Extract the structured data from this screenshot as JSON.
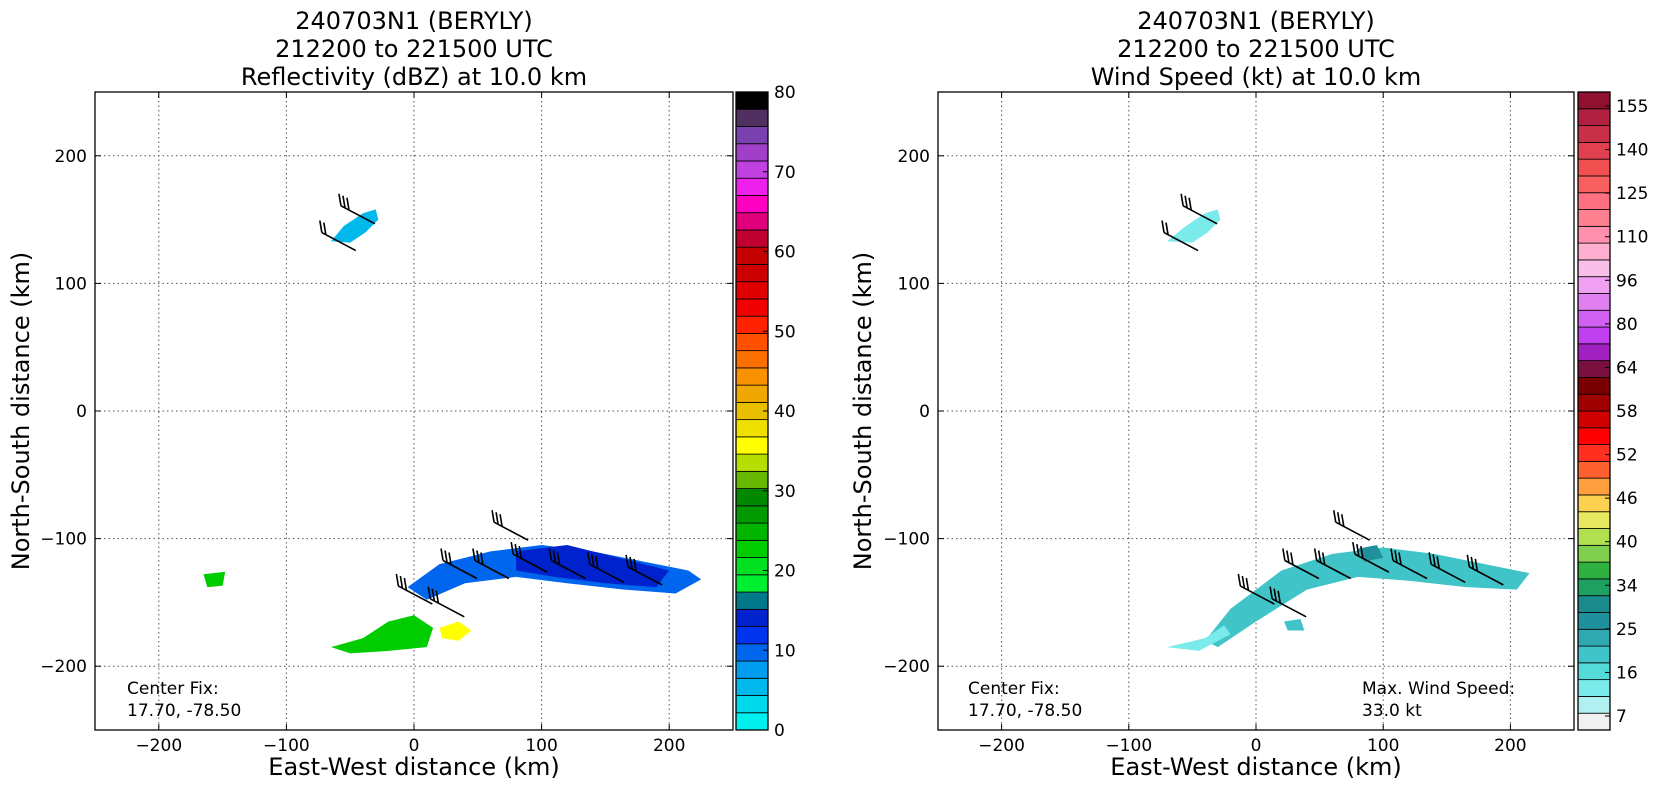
{
  "panels": [
    {
      "id": "reflectivity",
      "title_lines": [
        "240703N1 (BERYLY)",
        "212200 to 221500 UTC",
        "Reflectivity (dBZ) at 10.0 km"
      ],
      "xlabel": "East-West distance (km)",
      "ylabel": "North-South distance (km)",
      "xticks": [
        -200,
        -100,
        0,
        100,
        200
      ],
      "yticks": [
        200,
        100,
        0,
        -100,
        -200
      ],
      "center_fix_label": "Center Fix:",
      "center_fix_value": "17.70, -78.50",
      "colorbar": {
        "tick_labels": [
          "80",
          "70",
          "60",
          "50",
          "40",
          "30",
          "20",
          "10",
          "0"
        ],
        "colors": [
          "#00f0f0",
          "#00d8ec",
          "#00b8ec",
          "#009cf0",
          "#0066ee",
          "#0033ee",
          "#0022cc",
          "#007a8a",
          "#00ee30",
          "#00e020",
          "#00cc00",
          "#00b400",
          "#009a00",
          "#008800",
          "#66b800",
          "#b8dd00",
          "#ffff00",
          "#f0e000",
          "#e8c000",
          "#f0a800",
          "#f89000",
          "#fc7000",
          "#ff5000",
          "#ff2200",
          "#f00000",
          "#e00000",
          "#cc0000",
          "#c40000",
          "#c00030",
          "#e0007c",
          "#ff00c0",
          "#ee20ee",
          "#c040e0",
          "#a040c8",
          "#7a40b0",
          "#503060",
          "#000000"
        ]
      }
    },
    {
      "id": "wind",
      "title_lines": [
        "240703N1 (BERYLY)",
        "212200 to 221500 UTC",
        "Wind Speed (kt) at 10.0 km"
      ],
      "xlabel": "East-West distance (km)",
      "ylabel": "North-South distance (km)",
      "xticks": [
        -200,
        -100,
        0,
        100,
        200
      ],
      "yticks": [
        200,
        100,
        0,
        -100,
        -200
      ],
      "center_fix_label": "Center Fix:",
      "center_fix_value": "17.70, -78.50",
      "max_wind_label": "Max. Wind Speed:",
      "max_wind_value": "33.0 kt",
      "colorbar": {
        "tick_labels": [
          "155",
          "140",
          "125",
          "110",
          "96",
          "80",
          "64",
          "58",
          "52",
          "46",
          "40",
          "34",
          "25",
          "16",
          "7"
        ],
        "colors": [
          "#f0f0f0",
          "#b0f0f0",
          "#7aeaea",
          "#55dada",
          "#40c4c8",
          "#30aab0",
          "#20909c",
          "#1a8a8c",
          "#20a060",
          "#30b040",
          "#80d050",
          "#b0e050",
          "#e8e860",
          "#fcd050",
          "#ffa040",
          "#ff6030",
          "#ff3020",
          "#ff0000",
          "#d00000",
          "#a00000",
          "#780000",
          "#7a1040",
          "#a020c0",
          "#c040f0",
          "#d060f0",
          "#e080f0",
          "#f0a0f0",
          "#f8c0e8",
          "#ffb0d0",
          "#ff90b0",
          "#ff8090",
          "#ff7080",
          "#f86060",
          "#f05050",
          "#e04050",
          "#c83048",
          "#b02040",
          "#901030"
        ]
      }
    }
  ],
  "chart_data": [
    {
      "type": "heatmap",
      "title": "240703N1 (BERYLY) 212200 to 221500 UTC Reflectivity (dBZ) at 10.0 km",
      "xlabel": "East-West distance (km)",
      "ylabel": "North-South distance (km)",
      "xlim": [
        -250,
        250
      ],
      "ylim": [
        -250,
        250
      ],
      "grid": true,
      "colorbar_range": [
        0,
        80
      ],
      "colorbar_unit": "dBZ",
      "regions": [
        {
          "name": "north-blob",
          "points": [
            [
              -65,
              133
            ],
            [
              -55,
              145
            ],
            [
              -40,
              155
            ],
            [
              -30,
              158
            ],
            [
              -28,
              150
            ],
            [
              -38,
              140
            ],
            [
              -50,
              132
            ]
          ],
          "value_dbz": 5
        },
        {
          "name": "main-band-east",
          "points": [
            [
              -5,
              -138
            ],
            [
              20,
              -120
            ],
            [
              60,
              -110
            ],
            [
              100,
              -105
            ],
            [
              140,
              -110
            ],
            [
              180,
              -118
            ],
            [
              215,
              -125
            ],
            [
              225,
              -132
            ],
            [
              205,
              -143
            ],
            [
              165,
              -140
            ],
            [
              120,
              -135
            ],
            [
              80,
              -130
            ],
            [
              40,
              -135
            ],
            [
              10,
              -148
            ]
          ],
          "value_dbz": 10
        },
        {
          "name": "main-band-core",
          "points": [
            [
              80,
              -110
            ],
            [
              120,
              -105
            ],
            [
              160,
              -115
            ],
            [
              200,
              -125
            ],
            [
              190,
              -138
            ],
            [
              150,
              -135
            ],
            [
              110,
              -130
            ],
            [
              80,
              -125
            ]
          ],
          "value_dbz": 13
        },
        {
          "name": "sw-cluster-green",
          "points": [
            [
              -65,
              -185
            ],
            [
              -40,
              -178
            ],
            [
              -20,
              -165
            ],
            [
              0,
              -160
            ],
            [
              15,
              -170
            ],
            [
              10,
              -185
            ],
            [
              -20,
              -188
            ],
            [
              -50,
              -190
            ]
          ],
          "value_dbz": 23
        },
        {
          "name": "cluster-yellow",
          "points": [
            [
              20,
              -170
            ],
            [
              35,
              -165
            ],
            [
              45,
              -172
            ],
            [
              35,
              -180
            ],
            [
              22,
              -178
            ]
          ],
          "value_dbz": 36
        },
        {
          "name": "west-speck",
          "points": [
            [
              -165,
              -128
            ],
            [
              -148,
              -126
            ],
            [
              -150,
              -137
            ],
            [
              -162,
              -138
            ]
          ],
          "value_dbz": 22
        }
      ],
      "wind_barbs_kt": [
        {
          "x": -40,
          "y": 153,
          "speed_kt": 25
        },
        {
          "x": -55,
          "y": 132,
          "speed_kt": 20
        },
        {
          "x": 5,
          "y": -145,
          "speed_kt": 25
        },
        {
          "x": 30,
          "y": -155,
          "speed_kt": 25
        },
        {
          "x": 40,
          "y": -125,
          "speed_kt": 30
        },
        {
          "x": 65,
          "y": -125,
          "speed_kt": 30
        },
        {
          "x": 95,
          "y": -120,
          "speed_kt": 30
        },
        {
          "x": 125,
          "y": -125,
          "speed_kt": 30
        },
        {
          "x": 155,
          "y": -128,
          "speed_kt": 30
        },
        {
          "x": 185,
          "y": -130,
          "speed_kt": 30
        },
        {
          "x": 80,
          "y": -95,
          "speed_kt": 30
        }
      ]
    },
    {
      "type": "heatmap",
      "title": "240703N1 (BERYLY) 212200 to 221500 UTC Wind Speed (kt) at 10.0 km",
      "xlabel": "East-West distance (km)",
      "ylabel": "North-South distance (km)",
      "xlim": [
        -250,
        250
      ],
      "ylim": [
        -250,
        250
      ],
      "grid": true,
      "colorbar_range": [
        7,
        155
      ],
      "colorbar_unit": "kt",
      "max_wind_speed_kt": 33.0,
      "regions": [
        {
          "name": "north-blob",
          "points": [
            [
              -70,
              133
            ],
            [
              -55,
              145
            ],
            [
              -40,
              155
            ],
            [
              -30,
              158
            ],
            [
              -28,
              150
            ],
            [
              -38,
              140
            ],
            [
              -50,
              132
            ]
          ],
          "value_kt": 16
        },
        {
          "name": "main-band",
          "points": [
            [
              -40,
              -180
            ],
            [
              -20,
              -155
            ],
            [
              20,
              -125
            ],
            [
              60,
              -112
            ],
            [
              100,
              -107
            ],
            [
              140,
              -112
            ],
            [
              180,
              -120
            ],
            [
              215,
              -127
            ],
            [
              205,
              -140
            ],
            [
              165,
              -138
            ],
            [
              120,
              -133
            ],
            [
              80,
              -130
            ],
            [
              40,
              -140
            ],
            [
              0,
              -165
            ],
            [
              -30,
              -185
            ]
          ],
          "value_kt": 25
        },
        {
          "name": "sw-light",
          "points": [
            [
              -70,
              -185
            ],
            [
              -40,
              -178
            ],
            [
              -25,
              -168
            ],
            [
              -20,
              -175
            ],
            [
              -45,
              -188
            ]
          ],
          "value_kt": 16
        },
        {
          "name": "band-core-green",
          "points": [
            [
              80,
              -108
            ],
            [
              95,
              -105
            ],
            [
              100,
              -115
            ],
            [
              85,
              -118
            ]
          ],
          "value_kt": 33
        },
        {
          "name": "speck",
          "points": [
            [
              22,
              -165
            ],
            [
              35,
              -163
            ],
            [
              38,
              -172
            ],
            [
              25,
              -172
            ]
          ],
          "value_kt": 25
        }
      ]
    }
  ]
}
